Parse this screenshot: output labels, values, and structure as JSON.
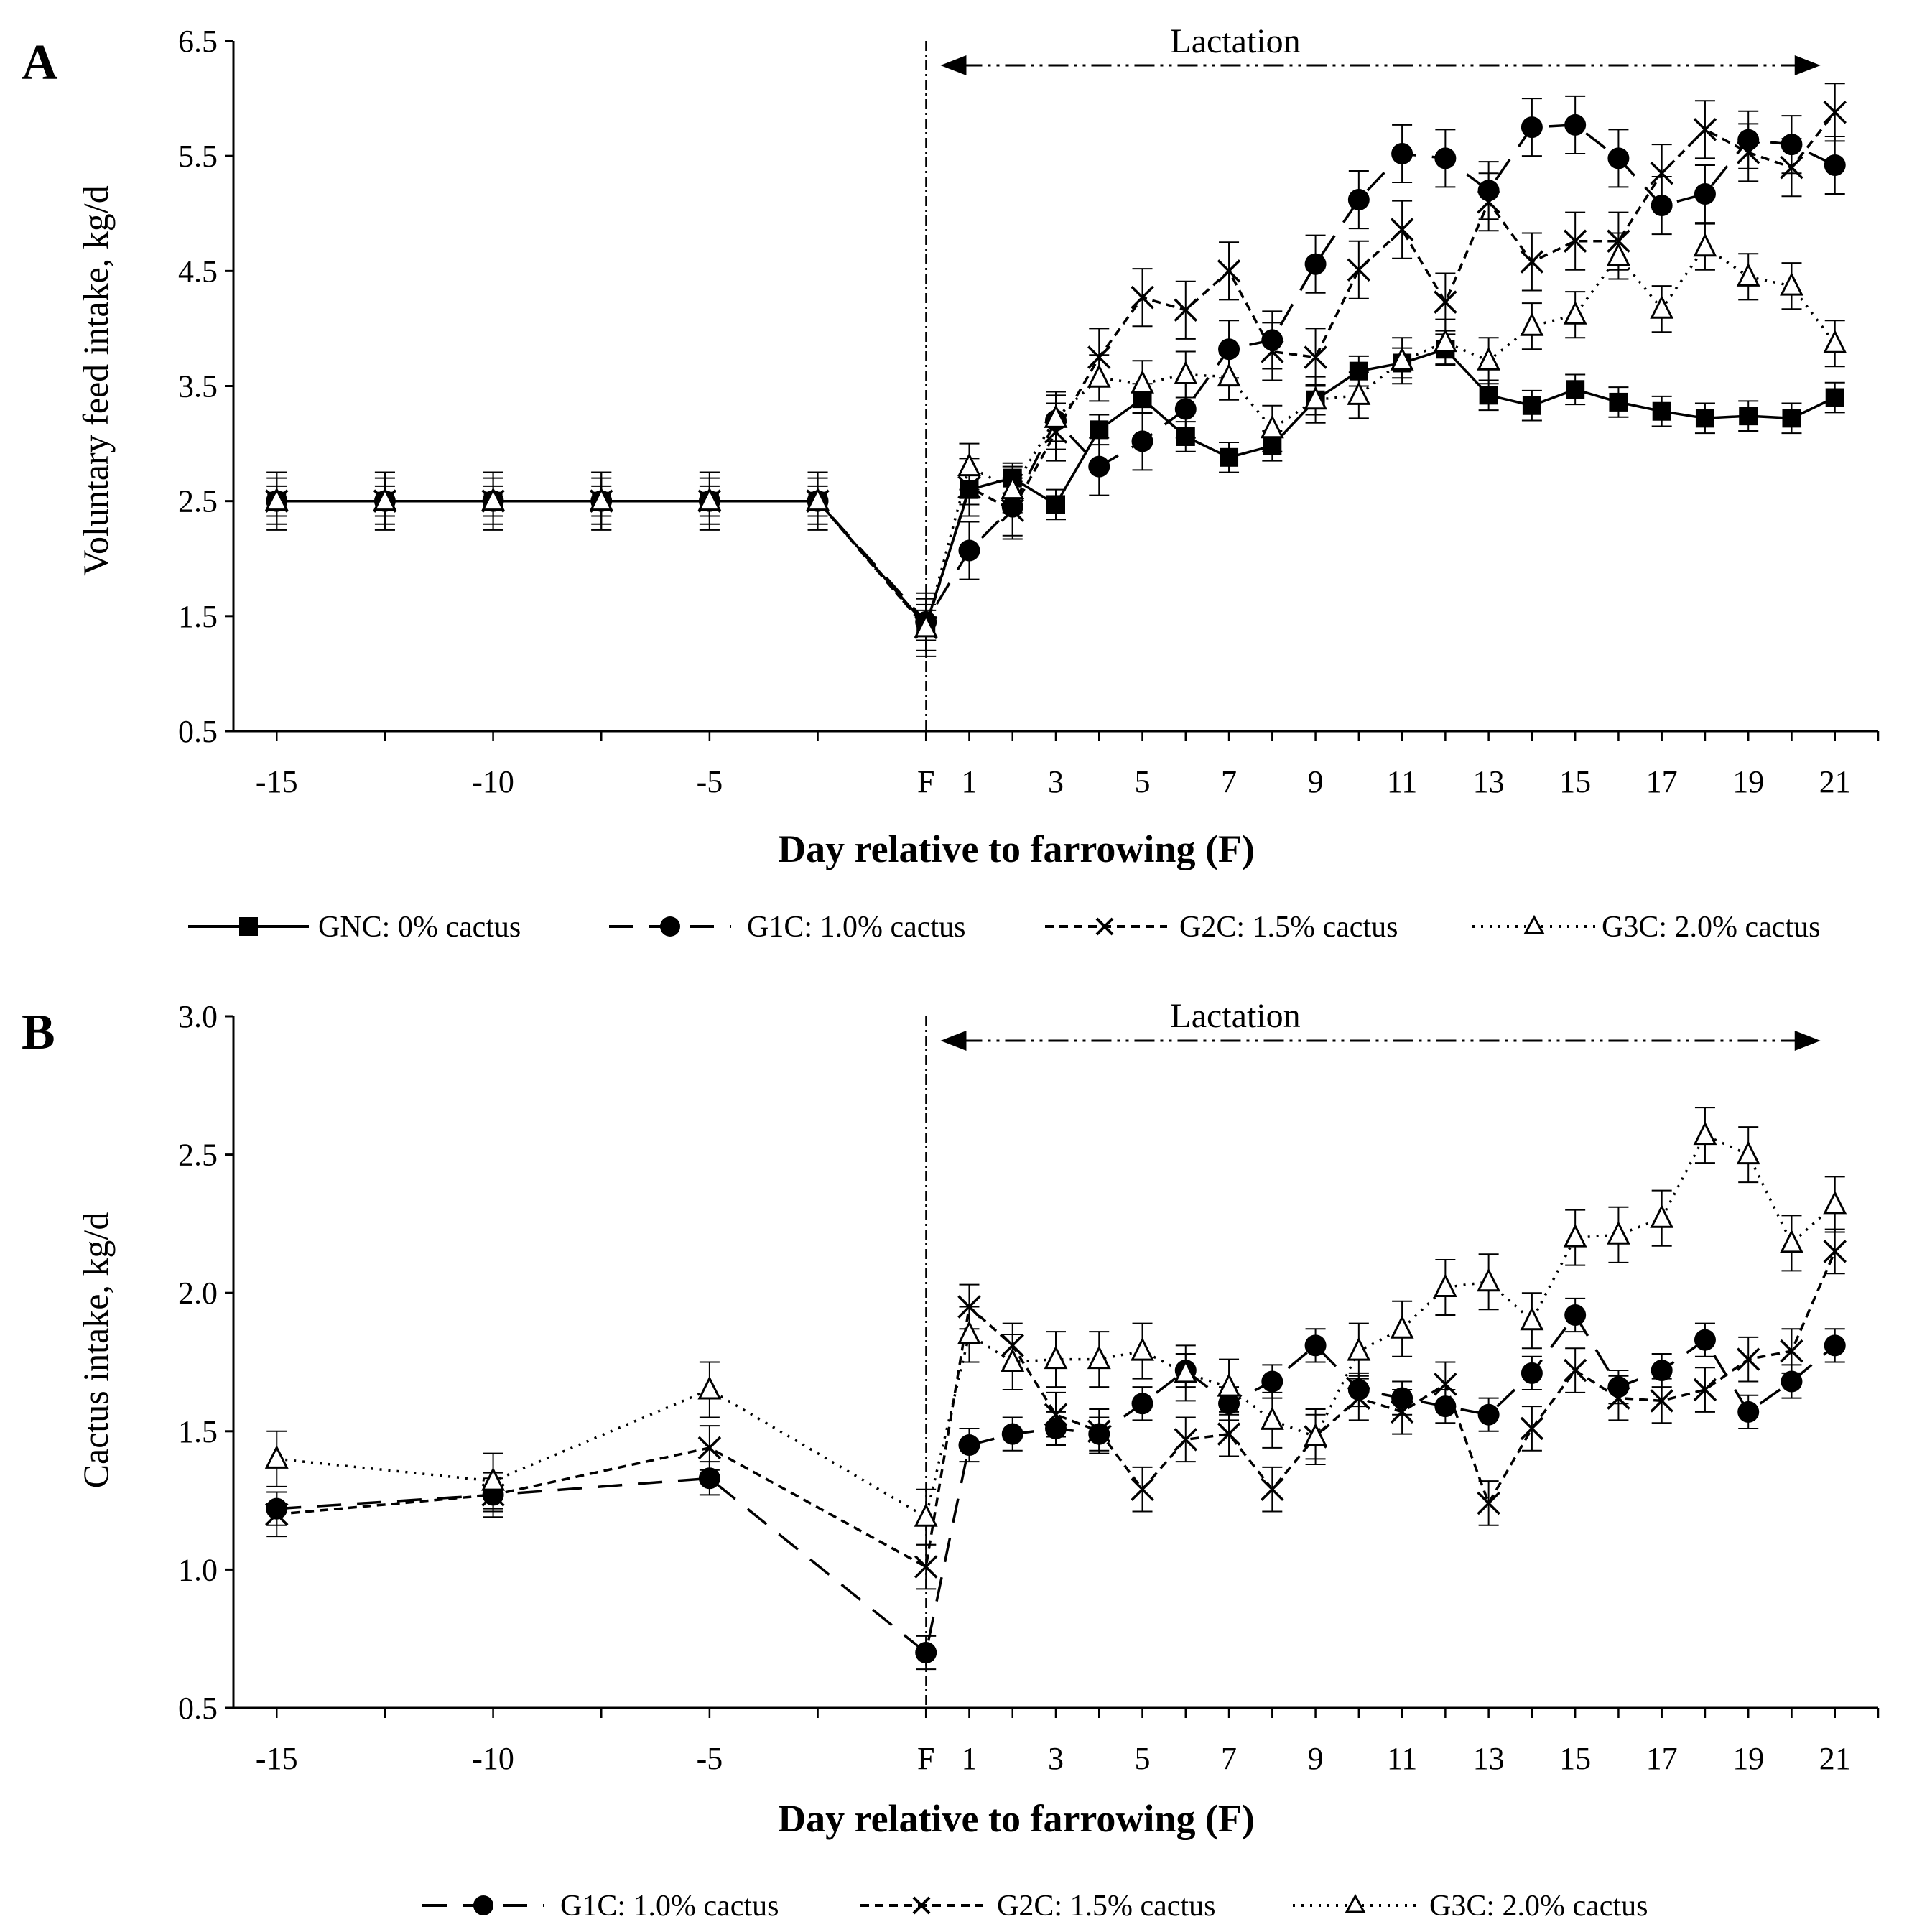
{
  "chart_data": [
    {
      "type": "line",
      "panel_label": "A",
      "ylabel": "Voluntary feed intake, kg/d",
      "xlabel": "Day relative to farrowing (F)",
      "annotation": "Lactation",
      "ylim": [
        0.5,
        6.5
      ],
      "yticks": [
        "0.5",
        "1.5",
        "2.5",
        "3.5",
        "4.5",
        "5.5",
        "6.5"
      ],
      "xticks": [
        {
          "x": -15,
          "label": "-15"
        },
        {
          "x": -10,
          "label": "-10"
        },
        {
          "x": -5,
          "label": "-5"
        },
        {
          "x": 0,
          "label": "F"
        },
        {
          "x": 1,
          "label": "1"
        },
        {
          "x": 3,
          "label": "3"
        },
        {
          "x": 5,
          "label": "5"
        },
        {
          "x": 7,
          "label": "7"
        },
        {
          "x": 9,
          "label": "9"
        },
        {
          "x": 11,
          "label": "11"
        },
        {
          "x": 13,
          "label": "13"
        },
        {
          "x": 15,
          "label": "15"
        },
        {
          "x": 17,
          "label": "17"
        },
        {
          "x": 19,
          "label": "19"
        },
        {
          "x": 21,
          "label": "21"
        }
      ],
      "series": [
        {
          "name": "GNC: 0% cactus",
          "marker": "square",
          "dash": "solid",
          "x": [
            -15,
            -12.5,
            -10,
            -7.5,
            -5,
            -2.5,
            0,
            1,
            2,
            3,
            4,
            5,
            6,
            7,
            8,
            9,
            10,
            11,
            12,
            13,
            14,
            15,
            16,
            17,
            18,
            19,
            20,
            21
          ],
          "y": [
            2.5,
            2.5,
            2.5,
            2.5,
            2.5,
            2.5,
            1.42,
            2.6,
            2.7,
            2.47,
            3.12,
            3.39,
            3.06,
            2.88,
            2.98,
            3.38,
            3.63,
            3.7,
            3.82,
            3.42,
            3.33,
            3.47,
            3.36,
            3.28,
            3.22,
            3.24,
            3.22,
            3.4
          ],
          "err": 0.13
        },
        {
          "name": "G1C: 1.0% cactus",
          "marker": "circle",
          "dash": "longdash",
          "x": [
            -15,
            -12.5,
            -10,
            -7.5,
            -5,
            -2.5,
            0,
            1,
            2,
            3,
            4,
            5,
            6,
            7,
            8,
            9,
            10,
            11,
            12,
            13,
            14,
            15,
            16,
            17,
            18,
            19,
            20,
            21
          ],
          "y": [
            2.5,
            2.5,
            2.5,
            2.5,
            2.5,
            2.5,
            1.45,
            2.07,
            2.45,
            3.2,
            2.8,
            3.02,
            3.3,
            3.82,
            3.9,
            4.56,
            5.12,
            5.52,
            5.48,
            5.2,
            5.75,
            5.77,
            5.48,
            5.07,
            5.17,
            5.64,
            5.6,
            5.42
          ],
          "err": 0.25
        },
        {
          "name": "G2C: 1.5% cactus",
          "marker": "x",
          "dash": "dash",
          "x": [
            -15,
            -12.5,
            -10,
            -7.5,
            -5,
            -2.5,
            0,
            1,
            2,
            3,
            4,
            5,
            6,
            7,
            8,
            9,
            10,
            11,
            12,
            13,
            14,
            15,
            16,
            17,
            18,
            19,
            20,
            21
          ],
          "y": [
            2.5,
            2.5,
            2.5,
            2.5,
            2.5,
            2.5,
            1.4,
            2.62,
            2.42,
            3.1,
            3.75,
            4.27,
            4.16,
            4.5,
            3.8,
            3.75,
            4.51,
            4.86,
            4.23,
            5.1,
            4.58,
            4.76,
            4.76,
            5.35,
            5.73,
            5.53,
            5.4,
            5.88
          ],
          "err": 0.25
        },
        {
          "name": "G3C: 2.0% cactus",
          "marker": "triangle",
          "dash": "dotted",
          "x": [
            -15,
            -12.5,
            -10,
            -7.5,
            -5,
            -2.5,
            0,
            1,
            2,
            3,
            4,
            5,
            6,
            7,
            8,
            9,
            10,
            11,
            12,
            13,
            14,
            15,
            16,
            17,
            18,
            19,
            20,
            21
          ],
          "y": [
            2.5,
            2.5,
            2.5,
            2.5,
            2.5,
            2.5,
            1.4,
            2.8,
            2.6,
            3.22,
            3.57,
            3.52,
            3.6,
            3.58,
            3.13,
            3.38,
            3.42,
            3.72,
            3.88,
            3.72,
            4.02,
            4.12,
            4.63,
            4.17,
            4.71,
            4.45,
            4.37,
            3.87
          ],
          "err": 0.2
        }
      ],
      "legend": [
        "GNC: 0% cactus",
        "G1C: 1.0% cactus",
        "G2C: 1.5% cactus",
        "G3C: 2.0% cactus"
      ]
    },
    {
      "type": "line",
      "panel_label": "B",
      "ylabel": "Cactus intake, kg/d",
      "xlabel": "Day relative to farrowing (F)",
      "annotation": "Lactation",
      "ylim": [
        0.5,
        3.0
      ],
      "yticks": [
        "0.5",
        "1.0",
        "1.5",
        "2.0",
        "2.5",
        "3.0"
      ],
      "xticks": [
        {
          "x": -15,
          "label": "-15"
        },
        {
          "x": -10,
          "label": "-10"
        },
        {
          "x": -5,
          "label": "-5"
        },
        {
          "x": 0,
          "label": "F"
        },
        {
          "x": 1,
          "label": "1"
        },
        {
          "x": 3,
          "label": "3"
        },
        {
          "x": 5,
          "label": "5"
        },
        {
          "x": 7,
          "label": "7"
        },
        {
          "x": 9,
          "label": "9"
        },
        {
          "x": 11,
          "label": "11"
        },
        {
          "x": 13,
          "label": "13"
        },
        {
          "x": 15,
          "label": "15"
        },
        {
          "x": 17,
          "label": "17"
        },
        {
          "x": 19,
          "label": "19"
        },
        {
          "x": 21,
          "label": "21"
        }
      ],
      "series": [
        {
          "name": "G1C: 1.0% cactus",
          "marker": "circle",
          "dash": "longdash",
          "x": [
            -15,
            -10,
            -5,
            0,
            1,
            2,
            3,
            4,
            5,
            6,
            7,
            8,
            9,
            10,
            11,
            12,
            13,
            14,
            15,
            16,
            17,
            18,
            19,
            20,
            21
          ],
          "y": [
            1.22,
            1.27,
            1.33,
            0.7,
            1.45,
            1.49,
            1.51,
            1.49,
            1.6,
            1.72,
            1.6,
            1.68,
            1.81,
            1.65,
            1.62,
            1.59,
            1.56,
            1.71,
            1.92,
            1.66,
            1.72,
            1.83,
            1.57,
            1.68,
            1.81
          ],
          "err": 0.06
        },
        {
          "name": "G2C: 1.5% cactus",
          "marker": "x",
          "dash": "dash",
          "x": [
            -15,
            -10,
            -5,
            0,
            1,
            2,
            3,
            4,
            5,
            6,
            7,
            8,
            9,
            10,
            11,
            12,
            13,
            14,
            15,
            16,
            17,
            18,
            19,
            20,
            21
          ],
          "y": [
            1.2,
            1.27,
            1.44,
            1.01,
            1.95,
            1.81,
            1.56,
            1.5,
            1.29,
            1.47,
            1.49,
            1.29,
            1.48,
            1.62,
            1.57,
            1.67,
            1.24,
            1.51,
            1.72,
            1.62,
            1.61,
            1.65,
            1.76,
            1.79,
            2.15
          ],
          "err": 0.08
        },
        {
          "name": "G3C: 2.0% cactus",
          "marker": "triangle",
          "dash": "dotted",
          "x": [
            -15,
            -10,
            -5,
            0,
            1,
            2,
            3,
            4,
            5,
            6,
            7,
            8,
            9,
            10,
            11,
            12,
            13,
            14,
            15,
            16,
            17,
            18,
            19,
            20,
            21
          ],
          "y": [
            1.4,
            1.32,
            1.65,
            1.19,
            1.85,
            1.75,
            1.76,
            1.76,
            1.79,
            1.71,
            1.66,
            1.54,
            1.48,
            1.79,
            1.87,
            2.02,
            2.04,
            1.9,
            2.2,
            2.21,
            2.27,
            2.57,
            2.5,
            2.18,
            2.32
          ],
          "err": 0.1
        }
      ],
      "legend": [
        "G1C: 1.0% cactus",
        "G2C: 1.5% cactus",
        "G3C: 2.0% cactus"
      ]
    }
  ]
}
